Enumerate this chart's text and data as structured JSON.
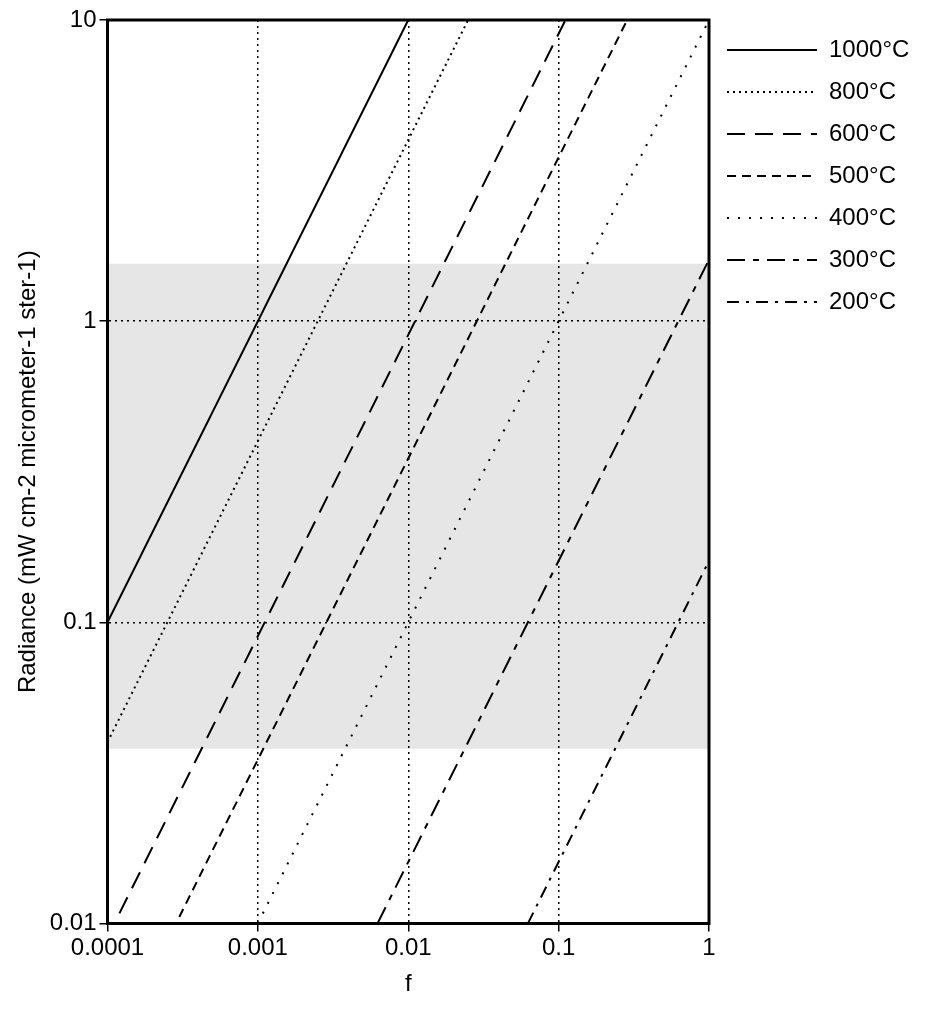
{
  "chart_data": {
    "type": "line",
    "xlabel": "f",
    "ylabel": "Radiance (mW cm-2 micrometer-1 ster-1)",
    "log": "xy",
    "grid": true,
    "legend": "top right",
    "marker": "none",
    "xlim": [
      0.0001,
      1
    ],
    "xticks": [
      0.0001,
      0.001,
      0.01,
      0.1,
      1
    ],
    "ylim": [
      0.01,
      10
    ],
    "yticks": [
      0.01,
      0.1,
      1,
      10
    ],
    "bands": [
      {
        "axis": "y",
        "from": 0.038,
        "to": 1.55,
        "color": "#e6e6e6"
      }
    ],
    "series": [
      {
        "name": "1000°C",
        "color": "#000000",
        "line_style": "solid",
        "x": [
          0.0001,
          0.01
        ],
        "values": [
          0.1,
          10
        ]
      },
      {
        "name": "800°C",
        "color": "#000000",
        "line_style": "dotted",
        "x": [
          0.0001,
          0.025
        ],
        "values": [
          0.04,
          10
        ]
      },
      {
        "name": "600°C",
        "color": "#000000",
        "line_style": "longdash",
        "x": [
          0.00012,
          0.11
        ],
        "values": [
          0.0108,
          9.9
        ]
      },
      {
        "name": "500°C",
        "color": "#000000",
        "line_style": "dashed",
        "x": [
          0.0003,
          0.28
        ],
        "values": [
          0.0105,
          9.8
        ]
      },
      {
        "name": "400°C",
        "color": "#000000",
        "line_style": "loosedot",
        "x": [
          0.001,
          1
        ],
        "values": [
          0.01,
          10
        ]
      },
      {
        "name": "300°C",
        "color": "#000000",
        "line_style": "longshort",
        "x": [
          0.00625,
          1
        ],
        "values": [
          0.01,
          1.6
        ]
      },
      {
        "name": "200°C",
        "color": "#000000",
        "line_style": "dashdot",
        "x": [
          0.0625,
          1
        ],
        "values": [
          0.01,
          0.16
        ]
      }
    ]
  }
}
